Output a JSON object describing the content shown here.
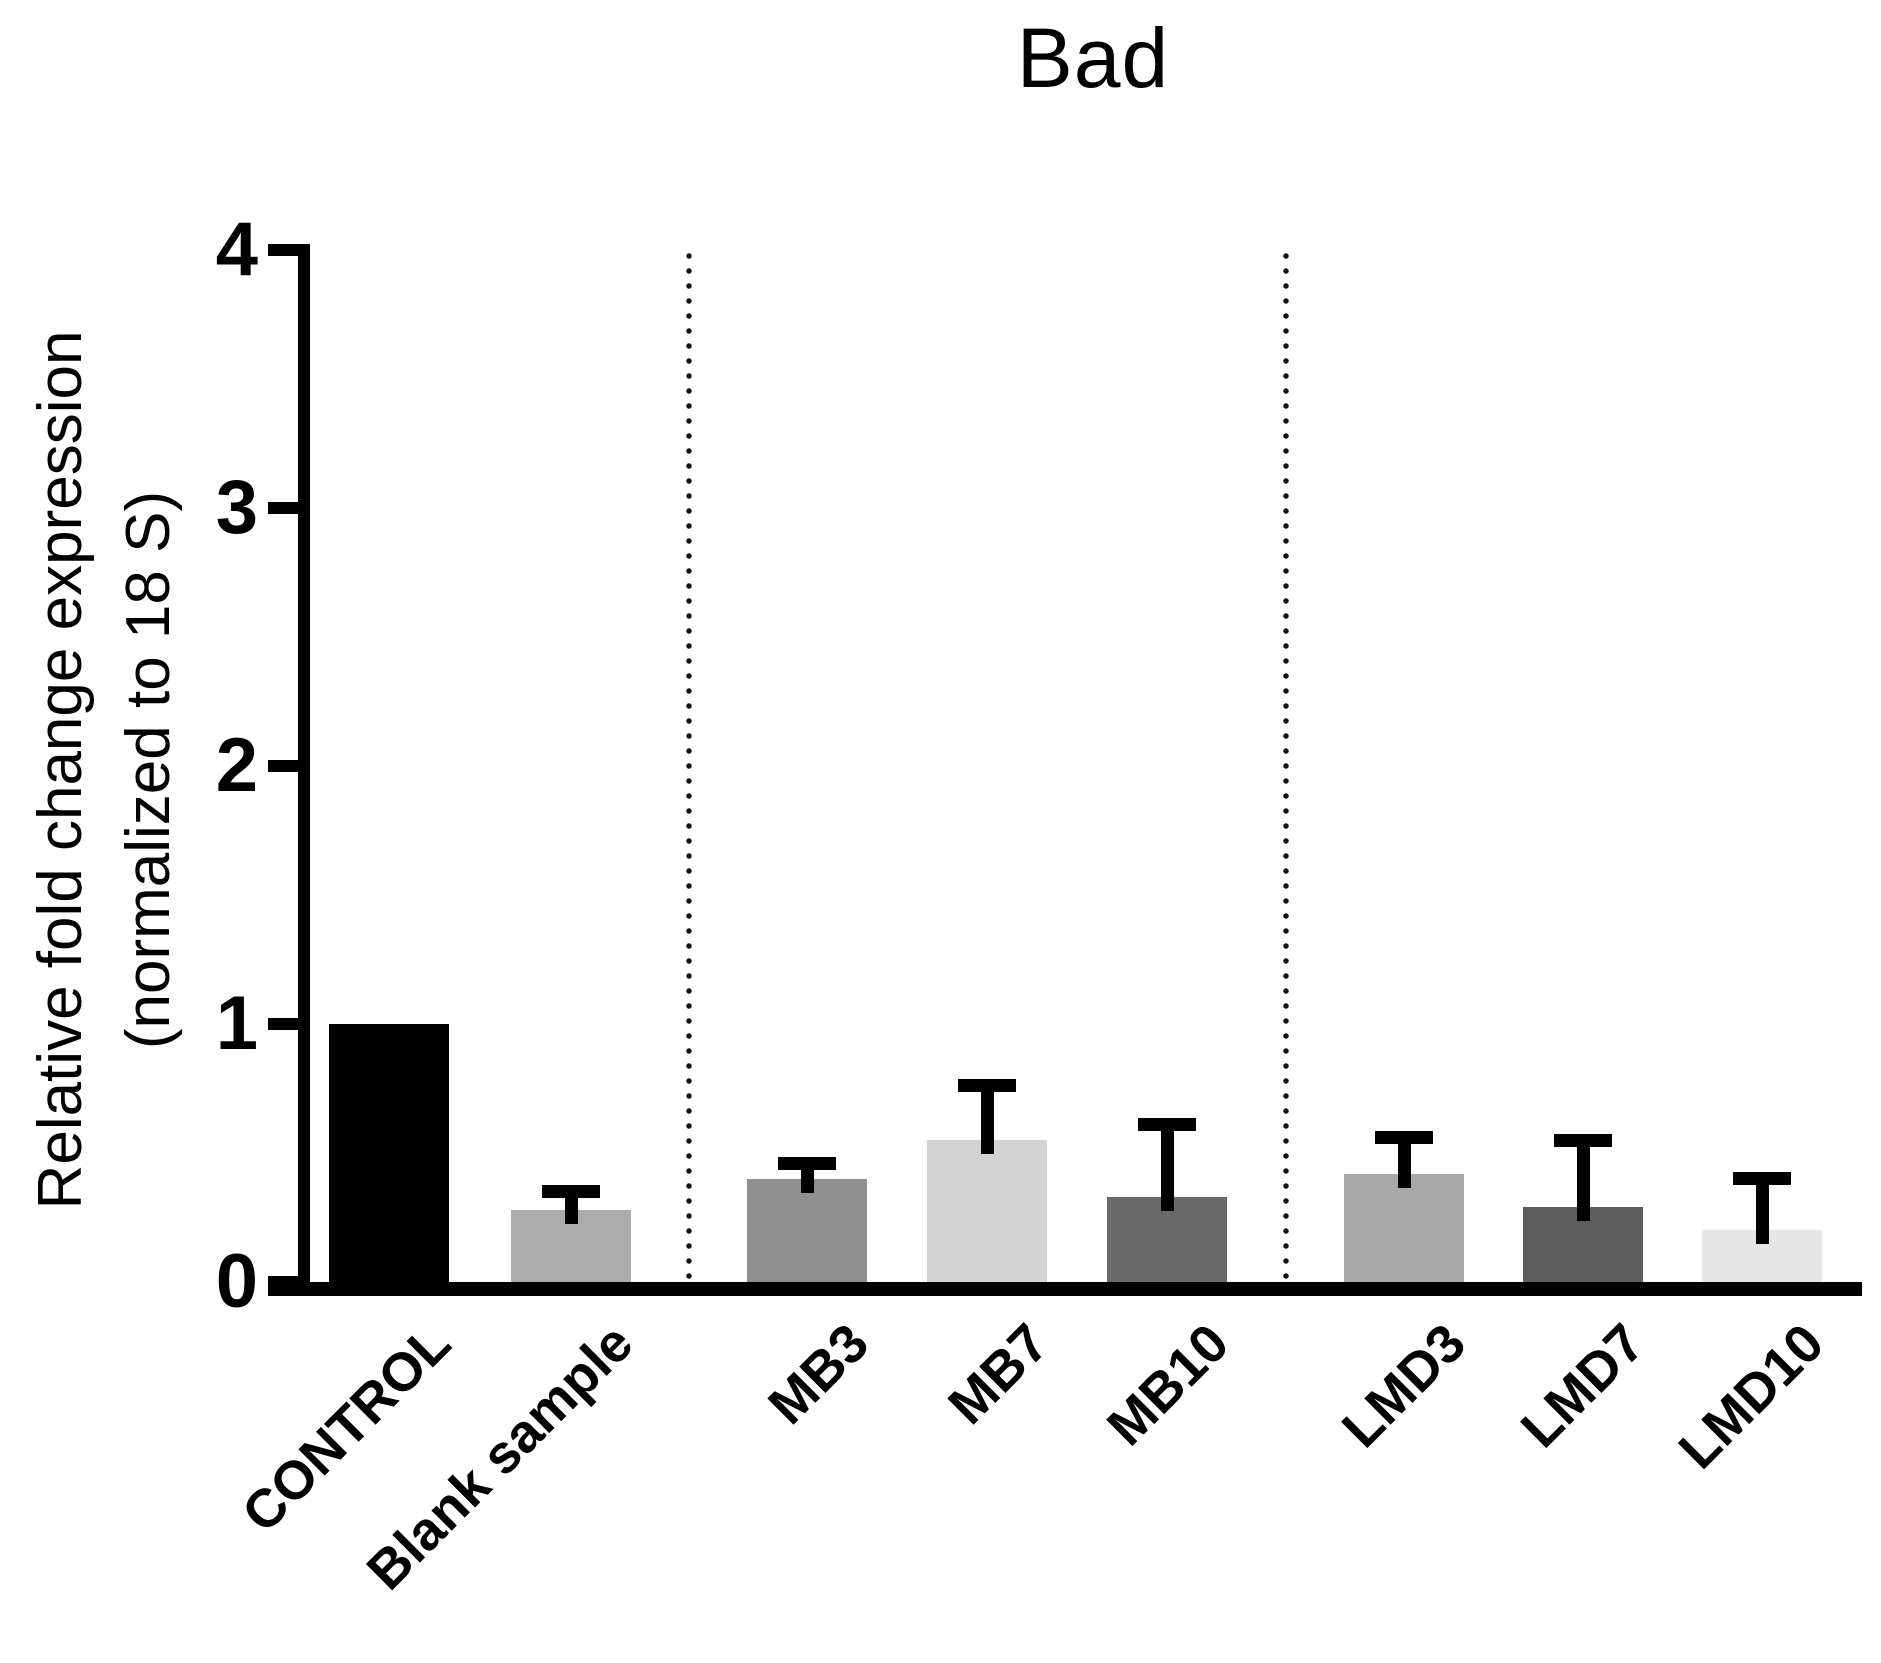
{
  "title": "Bad",
  "y_axis": {
    "label_line1": "Relative fold change expression",
    "label_line2": "(normalized to 18 S)"
  },
  "chart_data": {
    "type": "bar",
    "title": "Bad",
    "ylabel": "Relative fold change expression (normalized to 18 S)",
    "xlabel": "",
    "ylim": [
      0,
      4
    ],
    "yticks": [
      0,
      1,
      2,
      3,
      4
    ],
    "grid": false,
    "legend": "none",
    "categories": [
      "CONTROL",
      "Blank sample",
      "MB3",
      "MB7",
      "MB10",
      "LMD3",
      "LMD7",
      "LMD10"
    ],
    "values": [
      1.0,
      0.28,
      0.4,
      0.55,
      0.33,
      0.42,
      0.29,
      0.2
    ],
    "errors_sd_upper": [
      0,
      0.07,
      0.06,
      0.21,
      0.28,
      0.14,
      0.26,
      0.2
    ],
    "bar_colors": [
      "#000000",
      "#ababab",
      "#8f8f8f",
      "#d3d3d3",
      "#696969",
      "#a8a8a8",
      "#5e5e5e",
      "#e6e6e6"
    ],
    "error_color": "#000000",
    "axis_color": "#000000",
    "groups": [
      {
        "name": "control-group",
        "members": [
          "CONTROL",
          "Blank sample"
        ]
      },
      {
        "name": "MB-group",
        "members": [
          "MB3",
          "MB7",
          "MB10"
        ]
      },
      {
        "name": "LMD-group",
        "members": [
          "LMD3",
          "LMD7",
          "LMD10"
        ]
      }
    ],
    "separators_after": [
      "Blank sample",
      "MB10"
    ],
    "separator_style": "dotted-vertical"
  }
}
